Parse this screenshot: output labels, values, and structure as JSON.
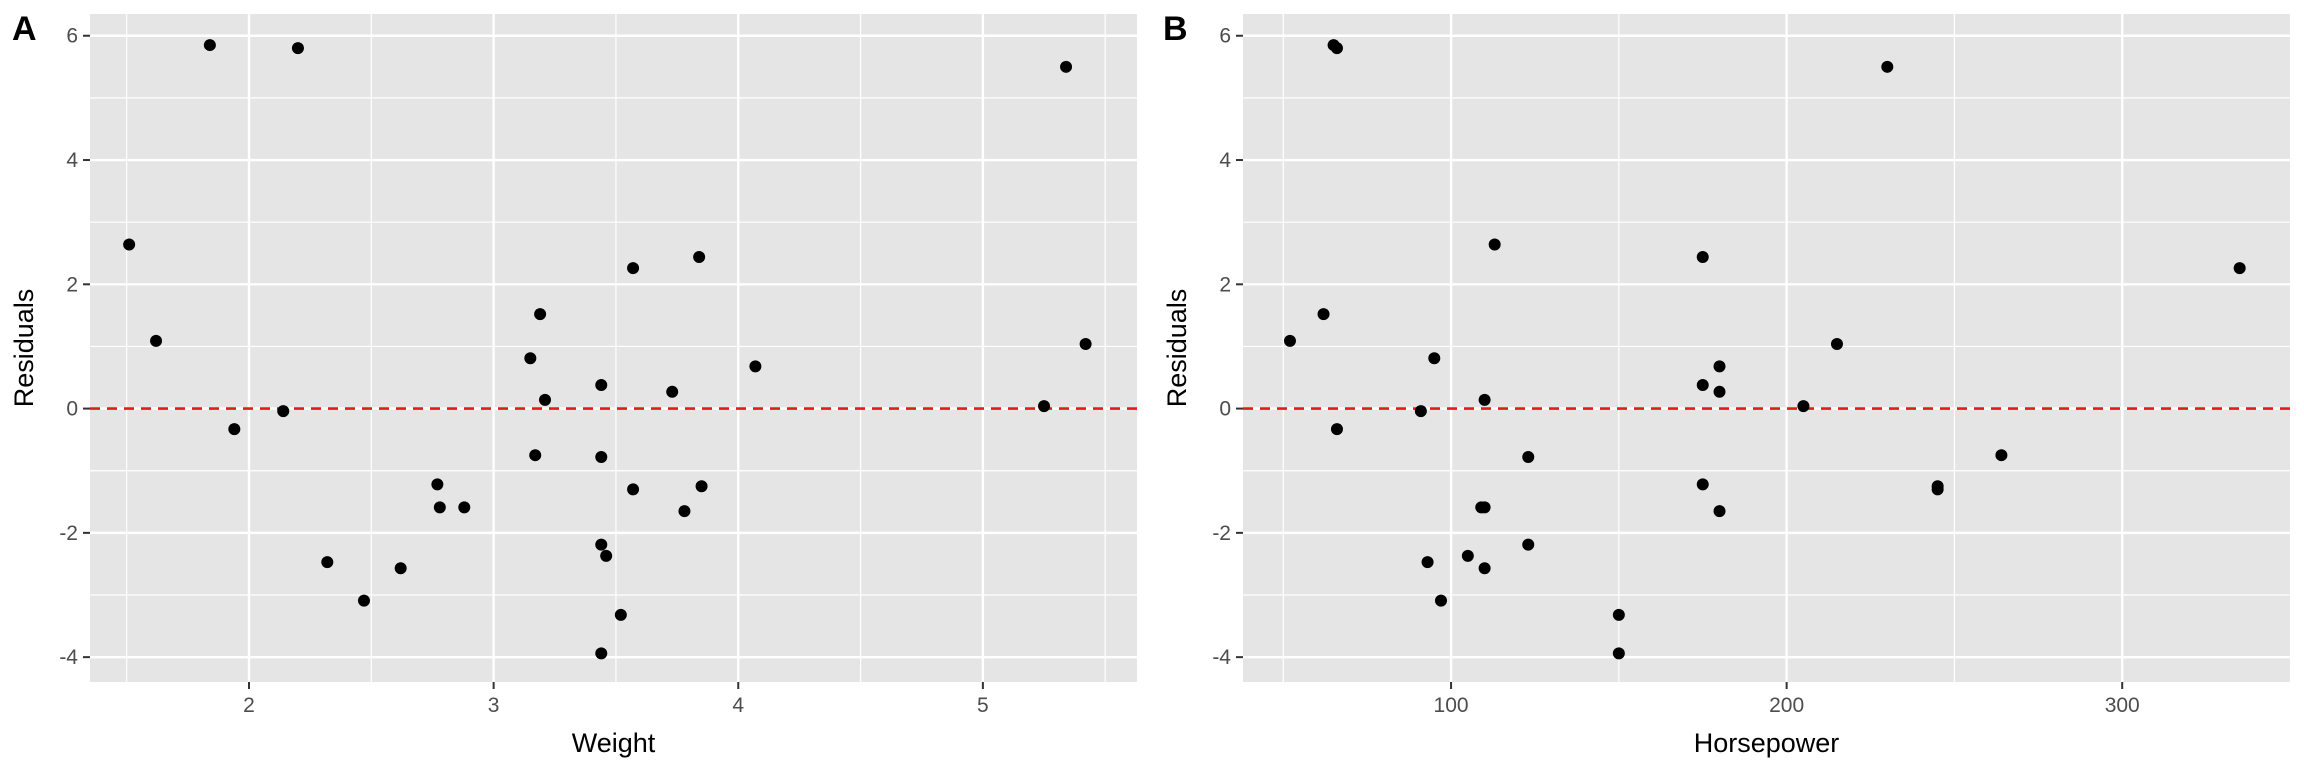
{
  "colors": {
    "panel_background": "#e5e5e5",
    "grid": "#ffffff",
    "points": "#000000",
    "reference_line": "#e41a1c",
    "tick_text": "#4d4d4d",
    "axis_title": "#000000"
  },
  "chart_data": [
    {
      "panel_label": "A",
      "type": "scatter",
      "title": "",
      "xlabel": "Weight",
      "ylabel": "Residuals",
      "xlim": [
        1.35,
        5.63
      ],
      "ylim": [
        -4.4,
        6.35
      ],
      "xticks": [
        2,
        3,
        4,
        5
      ],
      "yticks": [
        -4,
        -2,
        0,
        2,
        4,
        6
      ],
      "grid": true,
      "legend": "none",
      "reference_line": {
        "orientation": "horizontal",
        "value": 0,
        "style": "dashed"
      },
      "points": [
        {
          "x": 1.51,
          "y": 2.64
        },
        {
          "x": 1.62,
          "y": 1.09
        },
        {
          "x": 1.84,
          "y": 5.85
        },
        {
          "x": 1.94,
          "y": -0.33
        },
        {
          "x": 2.14,
          "y": -0.04
        },
        {
          "x": 2.2,
          "y": 5.8
        },
        {
          "x": 2.32,
          "y": -2.47
        },
        {
          "x": 2.47,
          "y": -3.09
        },
        {
          "x": 2.62,
          "y": -2.57
        },
        {
          "x": 2.77,
          "y": -1.22
        },
        {
          "x": 2.78,
          "y": -1.59
        },
        {
          "x": 2.88,
          "y": -1.59
        },
        {
          "x": 3.15,
          "y": 0.81
        },
        {
          "x": 3.17,
          "y": -0.75
        },
        {
          "x": 3.19,
          "y": 1.52
        },
        {
          "x": 3.21,
          "y": 0.14
        },
        {
          "x": 3.44,
          "y": 0.38
        },
        {
          "x": 3.44,
          "y": -0.78
        },
        {
          "x": 3.44,
          "y": -2.19
        },
        {
          "x": 3.46,
          "y": -2.37
        },
        {
          "x": 3.44,
          "y": -3.94
        },
        {
          "x": 3.52,
          "y": -3.32
        },
        {
          "x": 3.57,
          "y": 2.26
        },
        {
          "x": 3.57,
          "y": -1.3
        },
        {
          "x": 3.73,
          "y": 0.27
        },
        {
          "x": 3.78,
          "y": -1.65
        },
        {
          "x": 3.84,
          "y": 2.44
        },
        {
          "x": 3.85,
          "y": -1.25
        },
        {
          "x": 4.07,
          "y": 0.68
        },
        {
          "x": 5.25,
          "y": 0.04
        },
        {
          "x": 5.34,
          "y": 5.5
        },
        {
          "x": 5.42,
          "y": 1.04
        }
      ]
    },
    {
      "panel_label": "B",
      "type": "scatter",
      "title": "",
      "xlabel": "Horsepower",
      "ylabel": "Residuals",
      "xlim": [
        38,
        350
      ],
      "ylim": [
        -4.4,
        6.35
      ],
      "xticks": [
        100,
        200,
        300
      ],
      "yticks": [
        -4,
        -2,
        0,
        2,
        4,
        6
      ],
      "grid": true,
      "legend": "none",
      "reference_line": {
        "orientation": "horizontal",
        "value": 0,
        "style": "dashed"
      },
      "points": [
        {
          "x": 52,
          "y": 1.09
        },
        {
          "x": 62,
          "y": 1.52
        },
        {
          "x": 65,
          "y": 5.85
        },
        {
          "x": 66,
          "y": 5.8
        },
        {
          "x": 66,
          "y": -0.33
        },
        {
          "x": 91,
          "y": -0.04
        },
        {
          "x": 93,
          "y": -2.47
        },
        {
          "x": 95,
          "y": 0.81
        },
        {
          "x": 97,
          "y": -3.09
        },
        {
          "x": 105,
          "y": -2.37
        },
        {
          "x": 109,
          "y": -1.59
        },
        {
          "x": 110,
          "y": -1.59
        },
        {
          "x": 110,
          "y": 0.14
        },
        {
          "x": 110,
          "y": -2.57
        },
        {
          "x": 113,
          "y": 2.64
        },
        {
          "x": 123,
          "y": -0.78
        },
        {
          "x": 123,
          "y": -2.19
        },
        {
          "x": 150,
          "y": -3.32
        },
        {
          "x": 150,
          "y": -3.94
        },
        {
          "x": 175,
          "y": 2.44
        },
        {
          "x": 175,
          "y": 0.38
        },
        {
          "x": 175,
          "y": -1.22
        },
        {
          "x": 180,
          "y": 0.68
        },
        {
          "x": 180,
          "y": 0.27
        },
        {
          "x": 180,
          "y": -1.65
        },
        {
          "x": 205,
          "y": 0.04
        },
        {
          "x": 215,
          "y": 1.04
        },
        {
          "x": 230,
          "y": 5.5
        },
        {
          "x": 245,
          "y": -1.25
        },
        {
          "x": 245,
          "y": -1.3
        },
        {
          "x": 264,
          "y": -0.75
        },
        {
          "x": 335,
          "y": 2.26
        }
      ]
    }
  ]
}
